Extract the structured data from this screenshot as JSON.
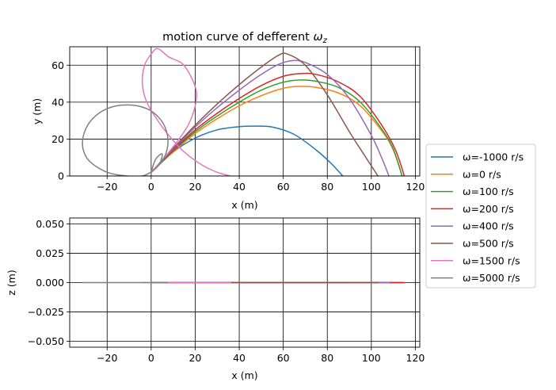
{
  "figure": {
    "background": "#ffffff"
  },
  "chart_data": [
    {
      "type": "line",
      "title": "motion curve of defferent ωz",
      "title_main": "motion curve of defferent ",
      "title_omega": "ω",
      "title_sub": "z",
      "xlabel": "x (m)",
      "ylabel": "y (m)",
      "xlim": [
        -37,
        122
      ],
      "ylim": [
        0,
        70
      ],
      "xticks": [
        -20,
        0,
        20,
        40,
        60,
        80,
        100,
        120
      ],
      "yticks": [
        0,
        20,
        40,
        60
      ],
      "xtick_labels": [
        "−20",
        "0",
        "20",
        "40",
        "60",
        "80",
        "100",
        "120"
      ],
      "ytick_labels": [
        "0",
        "20",
        "40",
        "60"
      ],
      "grid": true,
      "series": [
        {
          "name": "ω=-1000 r/s",
          "color": "#1f77b4",
          "x": [
            0,
            10,
            20,
            30,
            40,
            47,
            55,
            65,
            75,
            82,
            87
          ],
          "y": [
            2,
            13,
            20.5,
            25,
            26.7,
            27,
            26.5,
            22.5,
            14,
            6.5,
            0
          ]
        },
        {
          "name": "ω=0 r/s",
          "color": "#ff7f0e",
          "x": [
            0,
            10,
            20,
            30,
            40,
            50,
            60,
            67,
            75,
            85,
            95,
            105,
            110,
            114
          ],
          "y": [
            2,
            13,
            23,
            31,
            38,
            43.5,
            47.5,
            48.5,
            48,
            45,
            38,
            24,
            14,
            0
          ]
        },
        {
          "name": "ω=100 r/s",
          "color": "#2ca02c",
          "x": [
            0,
            10,
            20,
            30,
            40,
            50,
            60,
            68,
            75,
            85,
            95,
            105,
            110,
            114
          ],
          "y": [
            2,
            13.5,
            24,
            32.5,
            40,
            46.5,
            50.8,
            52,
            51.3,
            48,
            40,
            25,
            14.5,
            0
          ]
        },
        {
          "name": "ω=200 r/s",
          "color": "#d62728",
          "x": [
            0,
            10,
            20,
            30,
            40,
            50,
            60,
            68,
            75,
            85,
            95,
            105,
            111,
            115
          ],
          "y": [
            2,
            14,
            25,
            34,
            42,
            49,
            54,
            55.5,
            55,
            51,
            43,
            27,
            14,
            0
          ]
        },
        {
          "name": "ω=400 r/s",
          "color": "#9467bd",
          "x": [
            0,
            10,
            20,
            30,
            40,
            50,
            58,
            64,
            70,
            80,
            90,
            100,
            105,
            108
          ],
          "y": [
            2,
            14.5,
            26.5,
            37,
            46.5,
            55,
            60.5,
            62.5,
            61.5,
            55,
            42,
            22,
            9,
            0
          ]
        },
        {
          "name": "ω=500 r/s",
          "color": "#8c564b",
          "x": [
            0,
            10,
            20,
            30,
            40,
            50,
            58,
            62,
            70,
            80,
            90,
            97,
            103
          ],
          "y": [
            2,
            15,
            27.5,
            39,
            49.5,
            59,
            65.5,
            66,
            60,
            44,
            24,
            11,
            0
          ]
        },
        {
          "name": "ω=1500 r/s",
          "color": "#e377c2",
          "x": [
            0,
            6,
            12,
            17,
            20,
            20.5,
            18,
            14,
            8,
            3,
            0,
            -3,
            -4,
            -2,
            3,
            8,
            15,
            23,
            30,
            36
          ],
          "y": [
            2,
            10,
            19,
            28,
            38,
            46,
            54,
            61,
            64.5,
            69,
            66,
            60,
            50,
            40,
            30,
            22,
            13,
            6,
            2,
            0
          ]
        },
        {
          "name": "ω=5000 r/s",
          "color": "#7f7f7f",
          "x": [
            0,
            5,
            7.5,
            7,
            4,
            -2,
            -11,
            -20,
            -27,
            -30.5,
            -31,
            -28,
            -20,
            -11,
            -4,
            1,
            4,
            5,
            2,
            0
          ],
          "y": [
            2,
            8,
            16,
            24,
            31,
            36.5,
            38.5,
            36.5,
            30.5,
            23,
            15,
            8,
            2,
            0,
            0,
            3,
            7,
            12,
            9,
            2
          ]
        }
      ]
    },
    {
      "type": "line",
      "title": "",
      "xlabel": "x (m)",
      "ylabel": "z (m)",
      "xlim": [
        -37,
        122
      ],
      "ylim": [
        -0.055,
        0.055
      ],
      "xticks": [
        -20,
        0,
        20,
        40,
        60,
        80,
        100,
        120
      ],
      "yticks": [
        -0.05,
        -0.025,
        0,
        0.025,
        0.05
      ],
      "xtick_labels": [
        "−20",
        "0",
        "20",
        "40",
        "60",
        "80",
        "100",
        "120"
      ],
      "ytick_labels": [
        "−0.050",
        "−0.025",
        "0.000",
        "0.025",
        "0.050"
      ],
      "grid": true,
      "series": [
        {
          "color": "#1f77b4",
          "x": [
            0,
            87
          ],
          "y": [
            0,
            0
          ]
        },
        {
          "color": "#ff7f0e",
          "x": [
            0,
            114
          ],
          "y": [
            0,
            0
          ]
        },
        {
          "color": "#2ca02c",
          "x": [
            0,
            114
          ],
          "y": [
            0,
            0
          ]
        },
        {
          "color": "#d62728",
          "x": [
            0,
            115
          ],
          "y": [
            0,
            0
          ]
        },
        {
          "color": "#9467bd",
          "x": [
            0,
            108
          ],
          "y": [
            0,
            0
          ]
        },
        {
          "color": "#8c564b",
          "x": [
            0,
            103
          ],
          "y": [
            0,
            0
          ]
        },
        {
          "color": "#e377c2",
          "x": [
            -4,
            36
          ],
          "y": [
            0,
            0
          ]
        },
        {
          "color": "#7f7f7f",
          "x": [
            -31,
            7.5
          ],
          "y": [
            0,
            0
          ]
        }
      ]
    }
  ],
  "legend": {
    "placement": "right-center",
    "entries": [
      {
        "label": "ω=-1000 r/s",
        "color": "#1f77b4"
      },
      {
        "label": "ω=0 r/s",
        "color": "#ff7f0e"
      },
      {
        "label": "ω=100 r/s",
        "color": "#2ca02c"
      },
      {
        "label": "ω=200 r/s",
        "color": "#d62728"
      },
      {
        "label": "ω=400 r/s",
        "color": "#9467bd"
      },
      {
        "label": "ω=500 r/s",
        "color": "#8c564b"
      },
      {
        "label": "ω=1500 r/s",
        "color": "#e377c2"
      },
      {
        "label": "ω=5000 r/s",
        "color": "#7f7f7f"
      }
    ]
  }
}
